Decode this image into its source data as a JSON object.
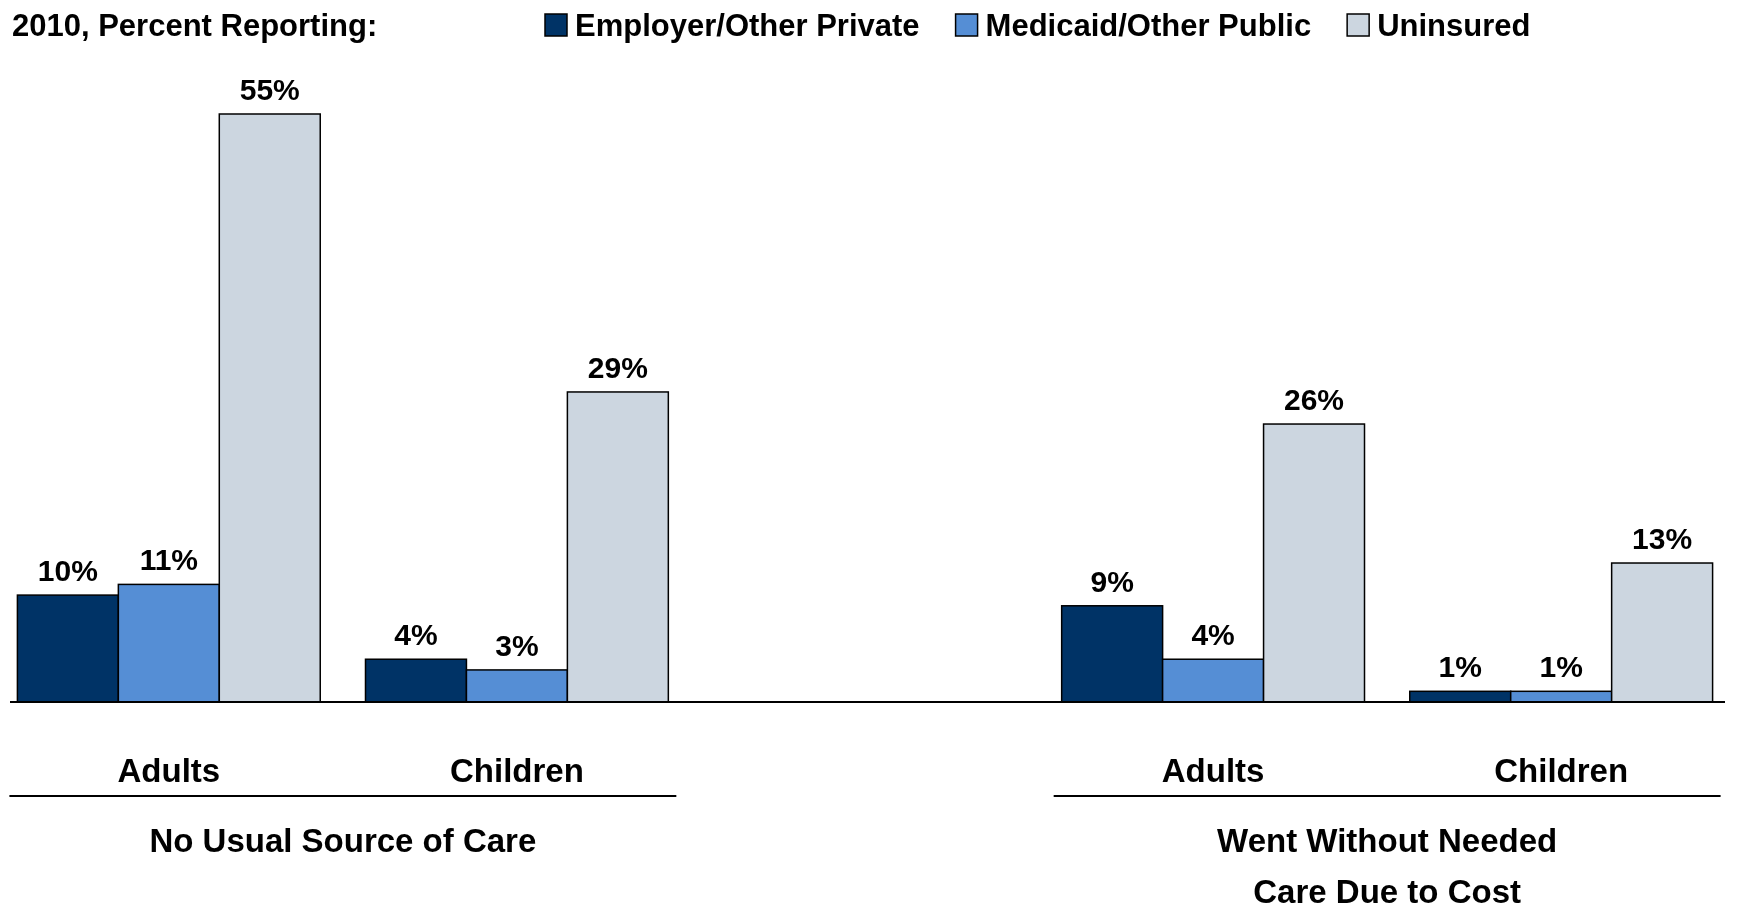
{
  "chart_data": {
    "type": "bar",
    "title": "2010, Percent Reporting:",
    "categories": [
      "Adults",
      "Children",
      null,
      "Adults",
      "Children"
    ],
    "series": [
      {
        "name": "Employer/Other Private",
        "color": "#003366",
        "values": [
          10,
          4,
          null,
          9,
          1
        ],
        "value_labels": [
          "10%",
          "4%",
          null,
          "9%",
          "1%"
        ]
      },
      {
        "name": "Medicaid/Other Public",
        "color": "#558ed5",
        "values": [
          11,
          3,
          null,
          4,
          1
        ],
        "value_labels": [
          "11%",
          "3%",
          null,
          "4%",
          "1%"
        ]
      },
      {
        "name": "Uninsured",
        "color": "#ccd6e0",
        "values": [
          55,
          29,
          null,
          26,
          13
        ],
        "value_labels": [
          "55%",
          "29%",
          null,
          "26%",
          "13%"
        ]
      }
    ],
    "legend": "top",
    "annotations": [
      "No Usual Source of Care",
      "Went Without Needed Care Due to Cost"
    ]
  }
}
